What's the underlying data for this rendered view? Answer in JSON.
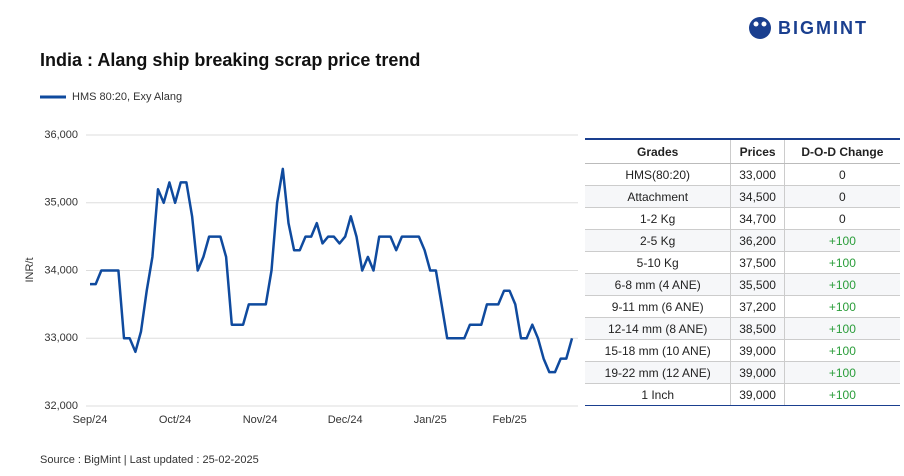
{
  "brand": "BIGMINT",
  "source": "Source : BigMint | Last updated : 25-02-2025",
  "chart_data": {
    "type": "line",
    "title": "India : Alang ship breaking scrap price trend",
    "y_label": "INR/t",
    "categories": [
      "Sep/24",
      null,
      null,
      null,
      null,
      null,
      null,
      null,
      null,
      null,
      null,
      null,
      null,
      null,
      null,
      "Oct/24",
      null,
      null,
      null,
      null,
      null,
      null,
      null,
      null,
      null,
      null,
      null,
      null,
      null,
      null,
      "Nov/24",
      null,
      null,
      null,
      null,
      null,
      null,
      null,
      null,
      null,
      null,
      null,
      null,
      null,
      null,
      "Dec/24",
      null,
      null,
      null,
      null,
      null,
      null,
      null,
      null,
      null,
      null,
      null,
      null,
      null,
      null,
      "Jan/25",
      null,
      null,
      null,
      null,
      null,
      null,
      null,
      null,
      null,
      null,
      null,
      null,
      null,
      "Feb/25",
      null,
      null,
      null,
      null,
      null,
      null,
      null,
      null,
      null,
      null,
      null
    ],
    "series": [
      {
        "name": "HMS 80:20, Exy Alang",
        "color": "#0f4a9e",
        "values": [
          33800,
          33800,
          34000,
          34000,
          34000,
          34000,
          33000,
          33000,
          32800,
          33100,
          33700,
          34200,
          35200,
          35000,
          35300,
          35000,
          35300,
          35300,
          34800,
          34000,
          34200,
          34500,
          34500,
          34500,
          34200,
          33200,
          33200,
          33200,
          33500,
          33500,
          33500,
          33500,
          34000,
          35000,
          35500,
          34700,
          34300,
          34300,
          34500,
          34500,
          34700,
          34400,
          34500,
          34500,
          34400,
          34500,
          34800,
          34500,
          34000,
          34200,
          34000,
          34500,
          34500,
          34500,
          34300,
          34500,
          34500,
          34500,
          34500,
          34300,
          34000,
          34000,
          33500,
          33000,
          33000,
          33000,
          33000,
          33200,
          33200,
          33200,
          33500,
          33500,
          33500,
          33700,
          33700,
          33500,
          33000,
          33000,
          33200,
          33000,
          32700,
          32500,
          32500,
          32700,
          32700,
          33000
        ]
      }
    ],
    "ylim": [
      32000,
      36000
    ],
    "yticks": [
      {
        "value": 32000,
        "label": "32,000"
      },
      {
        "value": 33000,
        "label": "33,000"
      },
      {
        "value": 34000,
        "label": "34,000"
      },
      {
        "value": 35000,
        "label": "35,000"
      },
      {
        "value": 36000,
        "label": "36,000"
      }
    ],
    "grid": true
  },
  "table": {
    "columns": [
      "Grades",
      "Prices",
      "D-O-D Change"
    ],
    "rows": [
      [
        "HMS(80:20)",
        "33,000",
        "0"
      ],
      [
        "Attachment",
        "34,500",
        "0"
      ],
      [
        "1-2 Kg",
        "34,700",
        "0"
      ],
      [
        "2-5 Kg",
        "36,200",
        "+100"
      ],
      [
        "5-10 Kg",
        "37,500",
        "+100"
      ],
      [
        "6-8 mm (4 ANE)",
        "35,500",
        "+100"
      ],
      [
        "9-11 mm (6 ANE)",
        "37,200",
        "+100"
      ],
      [
        "12-14 mm (8 ANE)",
        "38,500",
        "+100"
      ],
      [
        "15-18 mm (10 ANE)",
        "39,000",
        "+100"
      ],
      [
        "19-22 mm (12 ANE)",
        "39,000",
        "+100"
      ],
      [
        "1 Inch",
        "39,000",
        "+100"
      ]
    ]
  }
}
